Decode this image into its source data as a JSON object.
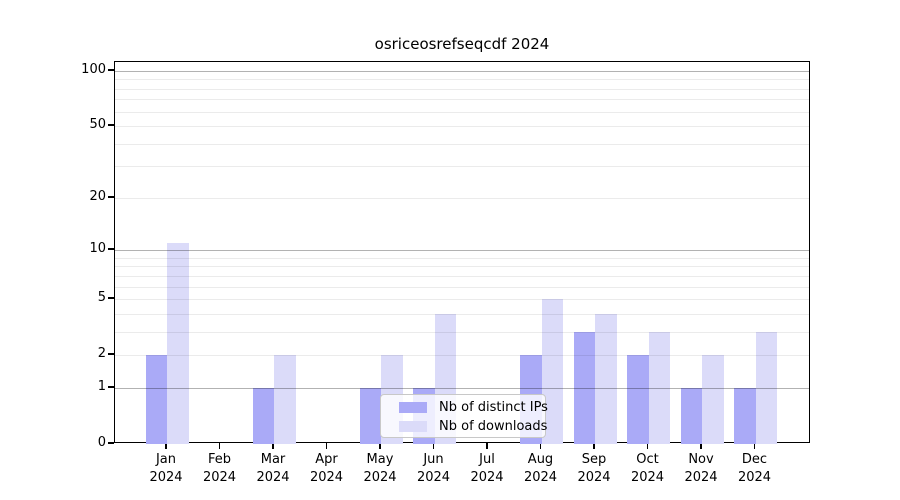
{
  "chart_data": {
    "type": "bar",
    "title": "osriceosrefseqcdf 2024",
    "categories": [
      "Jan",
      "Feb",
      "Mar",
      "Apr",
      "May",
      "Jun",
      "Jul",
      "Aug",
      "Sep",
      "Oct",
      "Nov",
      "Dec"
    ],
    "x_tick_second_line": "2024",
    "series": [
      {
        "name": "Nb of distinct IPs",
        "color": "#aaaaf7",
        "values": [
          2,
          0,
          1,
          0,
          1,
          1,
          0,
          2,
          3,
          2,
          1,
          1
        ]
      },
      {
        "name": "Nb of downloads",
        "color": "#dbdbf9",
        "values": [
          11,
          0,
          2,
          0,
          2,
          4,
          0,
          5,
          4,
          3,
          2,
          3
        ]
      }
    ],
    "y_ticks": [
      0,
      1,
      2,
      5,
      10,
      20,
      50,
      100
    ],
    "y_scale": "log10(1+value)",
    "ylim": [
      0,
      112
    ],
    "grid": {
      "major_values": [
        1,
        10,
        100
      ],
      "minor_values": [
        2,
        3,
        4,
        5,
        6,
        7,
        8,
        9,
        20,
        30,
        40,
        50,
        60,
        70,
        80,
        90
      ]
    },
    "legend_position": "inside-lower-center",
    "colors": {
      "axis": "#000000",
      "background": "#ffffff"
    }
  }
}
